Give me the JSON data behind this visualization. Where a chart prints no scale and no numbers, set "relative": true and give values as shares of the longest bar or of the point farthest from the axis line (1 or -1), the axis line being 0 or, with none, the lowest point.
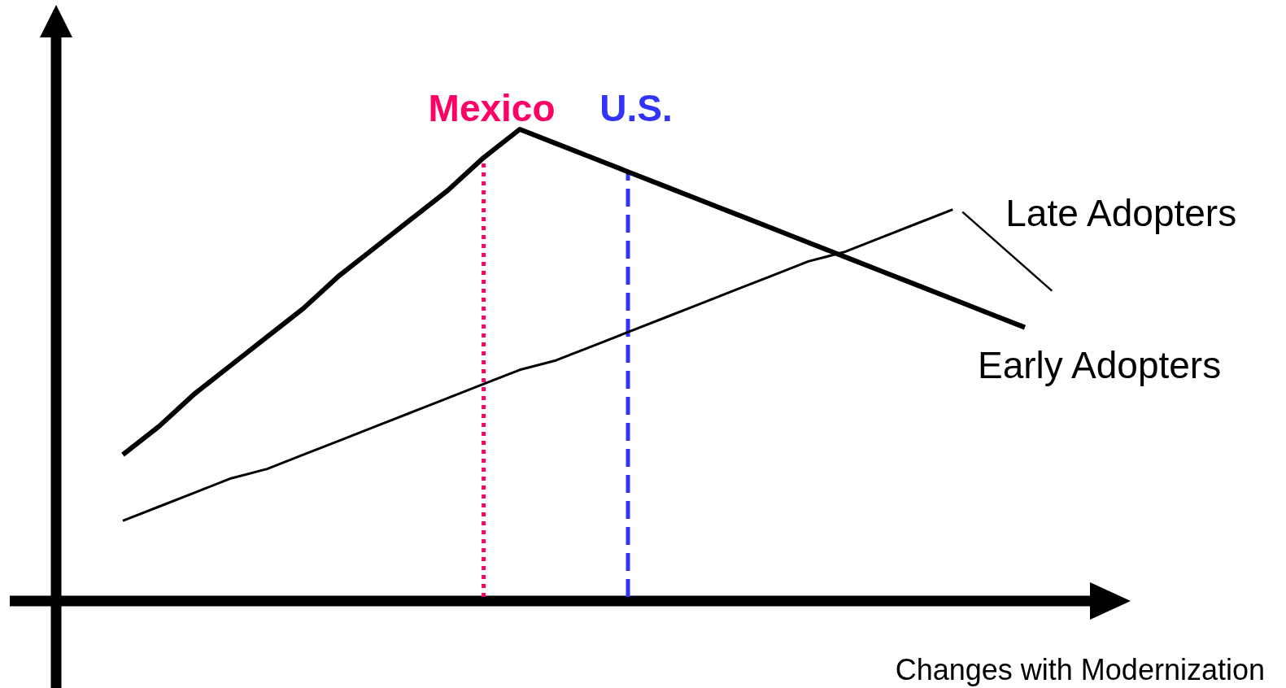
{
  "chart_data": {
    "type": "line",
    "relative": true,
    "xlabel": "Changes with Modernization",
    "marker": "none",
    "categories": [
      null,
      null,
      null,
      null,
      null,
      null,
      null,
      null,
      null,
      null,
      null,
      null,
      null,
      null,
      null,
      null,
      null,
      null,
      null,
      null,
      null,
      null,
      null,
      null,
      null,
      null
    ],
    "series": [
      {
        "name": "Early Adopters",
        "color": "#000000",
        "values": [
          0.31,
          0.37,
          0.44,
          0.5,
          0.56,
          0.62,
          0.69,
          0.75,
          0.81,
          0.87,
          0.94,
          1,
          0.97,
          0.94,
          0.91,
          0.88,
          0.85,
          0.82,
          0.79,
          0.76,
          0.73,
          0.7,
          0.67,
          0.64,
          0.61,
          0.58
        ]
      },
      {
        "name": "Late Adopters",
        "color": "#000000",
        "values": [
          0.17,
          0.2,
          0.23,
          0.26,
          0.28,
          0.31,
          0.34,
          0.37,
          0.4,
          0.43,
          0.46,
          0.49,
          0.51,
          0.54,
          0.57,
          0.6,
          0.63,
          0.66,
          0.69,
          0.72,
          0.74,
          0.77,
          0.8,
          0.83,
          null,
          null
        ]
      }
    ],
    "annotations": [
      "Mexico",
      "U.S."
    ]
  }
}
